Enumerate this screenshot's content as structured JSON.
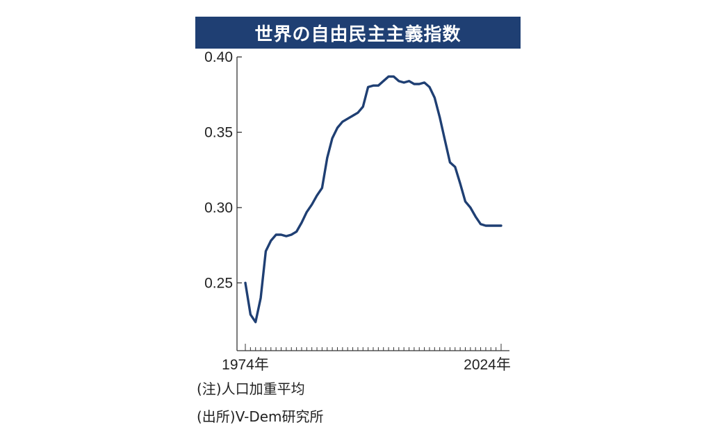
{
  "chart_data": {
    "type": "line",
    "title": "世界の自由民主主義指数",
    "xlabel": "",
    "ylabel": "",
    "x_tick_labels": [
      "1974年",
      "2024年"
    ],
    "x_range": [
      1974,
      2024
    ],
    "ylim": [
      0.205,
      0.4
    ],
    "y_ticks": [
      {
        "value": 0.4,
        "label": "0.40"
      },
      {
        "value": 0.35,
        "label": "0.35"
      },
      {
        "value": 0.3,
        "label": "0.30"
      },
      {
        "value": 0.25,
        "label": "0.25"
      }
    ],
    "series": [
      {
        "color": "#1f3f73",
        "x": [
          1974,
          1975,
          1976,
          1977,
          1978,
          1979,
          1980,
          1981,
          1982,
          1983,
          1984,
          1985,
          1986,
          1987,
          1988,
          1989,
          1990,
          1991,
          1992,
          1993,
          1994,
          1995,
          1996,
          1997,
          1998,
          1999,
          2000,
          2001,
          2002,
          2003,
          2004,
          2005,
          2006,
          2007,
          2008,
          2009,
          2010,
          2011,
          2012,
          2013,
          2014,
          2015,
          2016,
          2017,
          2018,
          2019,
          2020,
          2021,
          2022,
          2023,
          2024
        ],
        "values": [
          0.25,
          0.229,
          0.224,
          0.24,
          0.271,
          0.278,
          0.282,
          0.282,
          0.281,
          0.282,
          0.284,
          0.29,
          0.297,
          0.302,
          0.308,
          0.313,
          0.333,
          0.346,
          0.353,
          0.357,
          0.359,
          0.361,
          0.363,
          0.367,
          0.38,
          0.381,
          0.381,
          0.384,
          0.387,
          0.387,
          0.384,
          0.383,
          0.384,
          0.382,
          0.382,
          0.383,
          0.38,
          0.373,
          0.36,
          0.345,
          0.33,
          0.327,
          0.316,
          0.304,
          0.3,
          0.294,
          0.289,
          0.288,
          0.288,
          0.288,
          0.288
        ]
      }
    ]
  },
  "notes": {
    "note": "(注)人口加重平均",
    "source": "(出所)V-Dem研究所"
  }
}
